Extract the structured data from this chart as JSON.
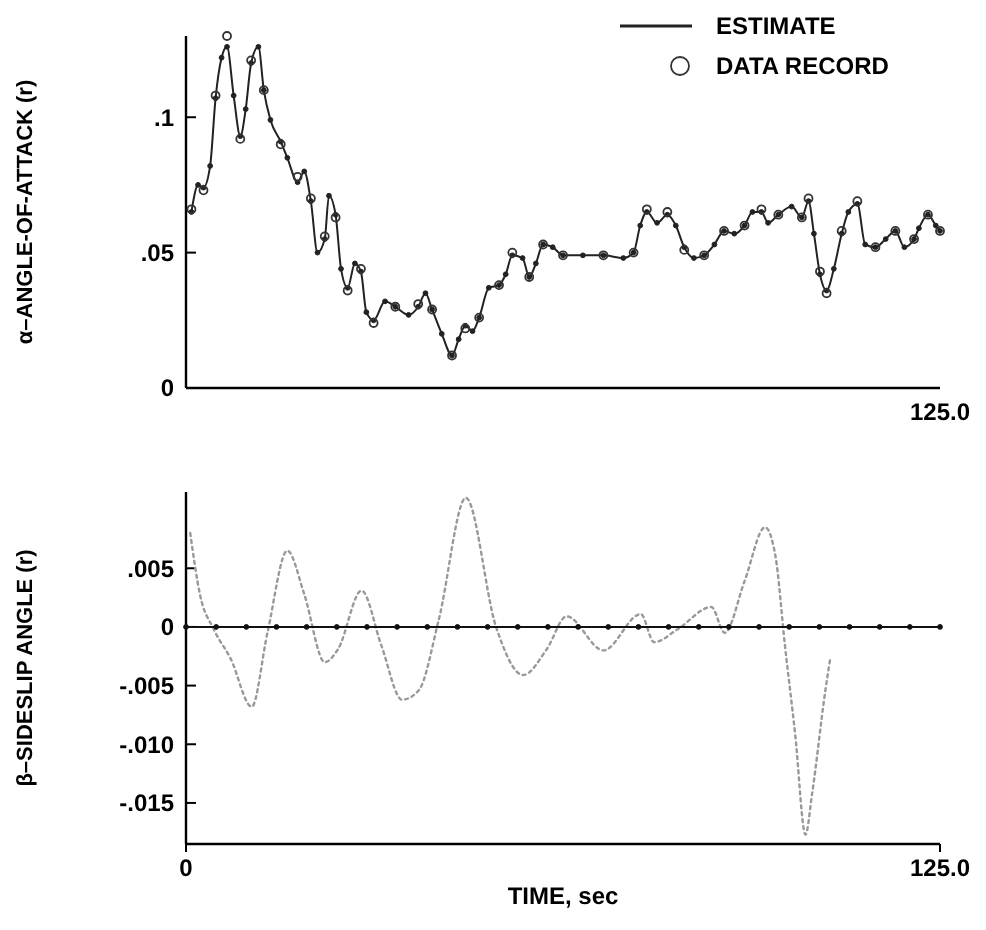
{
  "chart_data": [
    {
      "type": "line",
      "ylabel": "α–ANGLE-OF-ATTACK (r)",
      "xlim": [
        0,
        125
      ],
      "tick_labels": "y",
      "annotations": [
        "125.0"
      ],
      "ylim": [
        0,
        0.13
      ],
      "yticks": [
        {
          "value": 0,
          "label": "0"
        },
        {
          "value": 0.05,
          "label": ".05"
        },
        {
          "value": 0.1,
          "label": ".1"
        }
      ],
      "legend": "top right",
      "grid": false,
      "series": [
        {
          "name": "ESTIMATE",
          "type": "line",
          "color": "#222222",
          "marker": "circle",
          "line_style": "solid",
          "x": [
            0.9,
            2,
            2.9,
            4,
            4.9,
            5.9,
            6.8,
            7.9,
            9,
            9.9,
            10.8,
            12,
            12.9,
            14,
            15.7,
            16.8,
            18.5,
            19.6,
            20.7,
            21.8,
            23,
            23.7,
            24.8,
            25.7,
            26.8,
            28,
            29,
            29.9,
            31.1,
            33,
            34.7,
            36.9,
            38.5,
            39.7,
            40.8,
            42.4,
            44.1,
            45.2,
            46.3,
            47.5,
            48.6,
            50.2,
            51.9,
            53,
            54.1,
            55.8,
            56.9,
            58,
            59.2,
            60.8,
            62.5,
            65.8,
            69.2,
            72.5,
            74.2,
            75.3,
            76.4,
            78.1,
            79.8,
            81.2,
            82.6,
            84.2,
            85.9,
            87.6,
            89.2,
            90.9,
            92.6,
            93.9,
            95.4,
            96.5,
            98.2,
            100.4,
            102.1,
            103.2,
            104.1,
            105.1,
            106.2,
            107.4,
            108.7,
            109.8,
            111.3,
            112.6,
            114.3,
            116,
            117.6,
            119.1,
            120.7,
            121.5,
            123,
            124.3,
            125
          ],
          "values": [
            0.065,
            0.075,
            0.074,
            0.082,
            0.107,
            0.122,
            0.126,
            0.108,
            0.093,
            0.103,
            0.12,
            0.126,
            0.11,
            0.099,
            0.091,
            0.085,
            0.076,
            0.08,
            0.069,
            0.05,
            0.055,
            0.071,
            0.064,
            0.044,
            0.037,
            0.046,
            0.043,
            0.028,
            0.025,
            0.032,
            0.03,
            0.027,
            0.03,
            0.035,
            0.029,
            0.02,
            0.012,
            0.018,
            0.023,
            0.021,
            0.026,
            0.037,
            0.038,
            0.042,
            0.049,
            0.048,
            0.041,
            0.046,
            0.053,
            0.052,
            0.049,
            0.049,
            0.049,
            0.048,
            0.05,
            0.06,
            0.065,
            0.061,
            0.064,
            0.06,
            0.052,
            0.048,
            0.049,
            0.053,
            0.058,
            0.057,
            0.06,
            0.065,
            0.065,
            0.061,
            0.064,
            0.067,
            0.063,
            0.069,
            0.057,
            0.042,
            0.036,
            0.044,
            0.057,
            0.065,
            0.068,
            0.053,
            0.052,
            0.055,
            0.058,
            0.052,
            0.055,
            0.059,
            0.064,
            0.06,
            0.058
          ]
        },
        {
          "name": "DATA RECORD",
          "type": "scatter",
          "color": "#333333",
          "marker": "circle",
          "x": [
            0.9,
            2.9,
            4.9,
            6.8,
            9,
            10.8,
            12.9,
            15.7,
            18.5,
            20.7,
            23,
            24.8,
            26.8,
            29,
            31.1,
            34.7,
            38.5,
            40.8,
            44.1,
            46.3,
            48.6,
            51.9,
            54.1,
            56.9,
            59.2,
            62.5,
            69.2,
            74.2,
            76.4,
            79.8,
            82.6,
            85.9,
            89.2,
            92.6,
            95.4,
            98.2,
            102.1,
            103.2,
            105.1,
            106.2,
            108.7,
            111.3,
            114.3,
            117.6,
            120.7,
            123,
            125
          ],
          "values": [
            0.066,
            0.073,
            0.108,
            0.13,
            0.092,
            0.121,
            0.11,
            0.09,
            0.078,
            0.07,
            0.056,
            0.063,
            0.036,
            0.044,
            0.024,
            0.03,
            0.031,
            0.029,
            0.012,
            0.022,
            0.026,
            0.038,
            0.05,
            0.041,
            0.053,
            0.049,
            0.049,
            0.05,
            0.066,
            0.065,
            0.051,
            0.049,
            0.058,
            0.06,
            0.066,
            0.064,
            0.063,
            0.07,
            0.043,
            0.035,
            0.058,
            0.069,
            0.052,
            0.058,
            0.055,
            0.064,
            0.058
          ]
        }
      ]
    },
    {
      "type": "line",
      "xlabel": "TIME, sec",
      "ylabel": "β–SIDESLIP ANGLE (r)",
      "xlim": [
        0,
        125
      ],
      "xticks": [
        {
          "value": 0,
          "label": "0"
        },
        {
          "value": 125,
          "label": "125.0"
        }
      ],
      "ylim": [
        -0.0185,
        0.0115
      ],
      "yticks": [
        {
          "value": 0.005,
          "label": ".005"
        },
        {
          "value": 0,
          "label": "0"
        },
        {
          "value": -0.005,
          "label": "-.005"
        },
        {
          "value": -0.01,
          "label": "-.010"
        },
        {
          "value": -0.015,
          "label": "-.015"
        }
      ],
      "grid": false,
      "series": [
        {
          "type": "line",
          "color": "#999999",
          "marker": "none",
          "line_style": "dotted",
          "x": [
            0.7,
            2.3,
            4.6,
            7.4,
            10.9,
            13.5,
            16.8,
            19.6,
            23,
            25.2,
            29.1,
            32.4,
            35.8,
            38.6,
            41.9,
            46.4,
            51.4,
            55.9,
            59.8,
            63.1,
            69.2,
            75.4,
            77.6,
            81.5,
            87.1,
            89.3,
            92.6,
            96,
            97.7,
            99.3,
            101,
            102.7,
            103.8,
            106,
            106.8
          ],
          "values": [
            0.008,
            0.0028,
            -0.0002,
            -0.0027,
            -0.0068,
            -0.0005,
            0.0065,
            0.0028,
            -0.003,
            -0.0019,
            0.0031,
            -0.0016,
            -0.0062,
            -0.0054,
            0.0006,
            0.011,
            0,
            -0.0041,
            -0.0019,
            0.0009,
            -0.002,
            0.0011,
            -0.0013,
            -0.0002,
            0.0017,
            -0.0005,
            0.0039,
            0.0085,
            0.0061,
            -0.0016,
            -0.0092,
            -0.0177,
            -0.0142,
            -0.0054,
            -0.0027
          ]
        },
        {
          "type": "line",
          "color": "#111111",
          "marker": "circle",
          "line_style": "solid",
          "x": [
            0,
            5,
            10,
            15,
            20,
            25,
            30,
            35,
            40,
            45,
            50,
            55,
            60,
            65,
            70,
            75,
            80,
            85,
            90,
            95,
            100,
            105,
            110,
            115,
            120,
            125
          ],
          "values": [
            0,
            0,
            0,
            0,
            0,
            0,
            0,
            0,
            0,
            0,
            0,
            0,
            0,
            0,
            0,
            0,
            0,
            0,
            0,
            0,
            0,
            0,
            0,
            0,
            0,
            0
          ]
        }
      ]
    }
  ]
}
